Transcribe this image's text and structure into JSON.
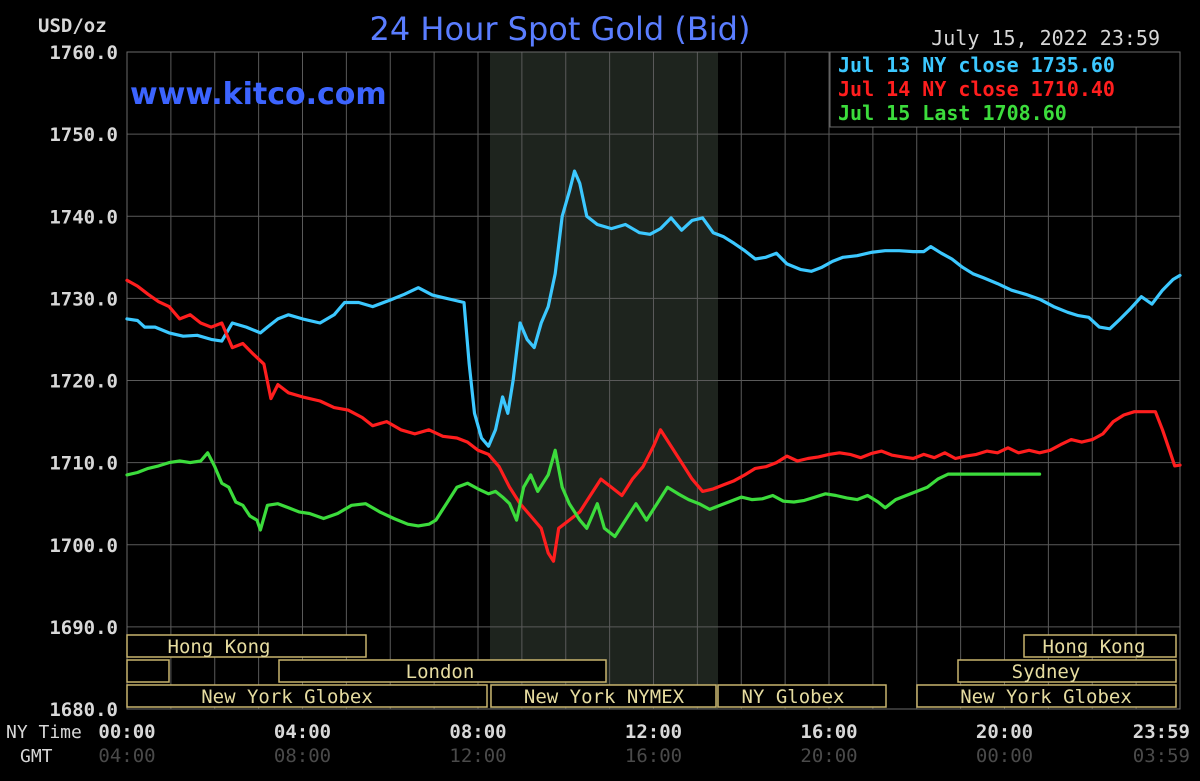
{
  "colors": {
    "background": "#000000",
    "grid": "#5a5a5a",
    "axis_text": "#d8d8d8",
    "title": "#5a7dff",
    "brand": "#3c64ff",
    "nymex_shade": "#1e241e",
    "session_border": "#c8b46e",
    "session_text": "#e6dca0"
  },
  "header": {
    "units": "USD/oz",
    "title": "24 Hour Spot Gold (Bid)",
    "timestamp": "July 15, 2022 23:59",
    "brand": "www.kitco.com"
  },
  "axis_labels": {
    "ny_time": "NY Time",
    "gmt": "GMT"
  },
  "sessions": {
    "hong_kong_1": "Hong Kong",
    "london": "London",
    "ny_globex_1": "New York Globex",
    "ny_nymex": "New York NYMEX",
    "ny_globex_2": "NY Globex",
    "hong_kong_2": "Hong Kong",
    "sydney": "Sydney",
    "ny_globex_3": "New York Globex"
  },
  "chart_data": {
    "type": "line",
    "title": "24 Hour Spot Gold (Bid)",
    "ylabel": "USD/oz",
    "ylim": [
      1680,
      1760
    ],
    "yticks": [
      "1760.0",
      "1750.0",
      "1740.0",
      "1730.0",
      "1720.0",
      "1710.0",
      "1700.0",
      "1690.0",
      "1680.0"
    ],
    "xlim_hours": [
      0,
      24
    ],
    "xticks_ny": [
      "00:00",
      "04:00",
      "08:00",
      "12:00",
      "16:00",
      "20:00",
      "23:59"
    ],
    "xticks_gmt": [
      "04:00",
      "08:00",
      "12:00",
      "16:00",
      "20:00",
      "00:00",
      "03:59"
    ],
    "grid": true,
    "legend_position": "top-right",
    "series": [
      {
        "name": "Jul 13 NY close 1735.60",
        "color": "#3cc8ff",
        "points": [
          [
            0,
            1727.5
          ],
          [
            0.3,
            1727.3
          ],
          [
            0.5,
            1726.5
          ],
          [
            0.8,
            1726.5
          ],
          [
            1.2,
            1725.8
          ],
          [
            1.6,
            1725.4
          ],
          [
            2.0,
            1725.5
          ],
          [
            2.4,
            1725.0
          ],
          [
            2.7,
            1724.8
          ],
          [
            3.0,
            1727
          ],
          [
            3.4,
            1726.5
          ],
          [
            3.8,
            1725.8
          ],
          [
            4.0,
            1726.5
          ],
          [
            4.3,
            1727.5
          ],
          [
            4.6,
            1728
          ],
          [
            5.0,
            1727.5
          ],
          [
            5.5,
            1727.0
          ],
          [
            5.9,
            1728
          ],
          [
            6.2,
            1729.5
          ],
          [
            6.6,
            1729.5
          ],
          [
            7.0,
            1729.0
          ],
          [
            7.5,
            1729.8
          ],
          [
            7.9,
            1730.5
          ],
          [
            8.3,
            1731.3
          ],
          [
            8.7,
            1730.4
          ],
          [
            9.0,
            1730.1
          ],
          [
            9.3,
            1729.8
          ],
          [
            9.6,
            1729.5
          ],
          [
            9.75,
            1722
          ],
          [
            9.9,
            1716
          ],
          [
            10.1,
            1713
          ],
          [
            10.3,
            1712
          ],
          [
            10.5,
            1714
          ],
          [
            10.7,
            1718
          ],
          [
            10.85,
            1716
          ],
          [
            11.0,
            1720
          ],
          [
            11.2,
            1727
          ],
          [
            11.4,
            1725
          ],
          [
            11.6,
            1724
          ],
          [
            11.8,
            1727
          ],
          [
            12.0,
            1729
          ],
          [
            12.2,
            1733
          ],
          [
            12.4,
            1740
          ],
          [
            12.6,
            1743
          ],
          [
            12.75,
            1745.5
          ],
          [
            12.9,
            1744
          ],
          [
            13.1,
            1740
          ],
          [
            13.4,
            1739
          ],
          [
            13.8,
            1738.5
          ],
          [
            14.2,
            1739.0
          ],
          [
            14.6,
            1738
          ],
          [
            14.9,
            1737.8
          ],
          [
            15.2,
            1738.5
          ],
          [
            15.5,
            1739.8
          ],
          [
            15.8,
            1738.3
          ],
          [
            16.1,
            1739.5
          ],
          [
            16.4,
            1739.8
          ],
          [
            16.7,
            1738
          ],
          [
            17.0,
            1737.5
          ],
          [
            17.3,
            1736.7
          ],
          [
            17.6,
            1735.8
          ],
          [
            17.9,
            1734.8
          ],
          [
            18.2,
            1735
          ],
          [
            18.5,
            1735.5
          ],
          [
            18.8,
            1734.2
          ],
          [
            19.2,
            1733.5
          ],
          [
            19.5,
            1733.3
          ],
          [
            19.8,
            1733.8
          ],
          [
            20.1,
            1734.5
          ],
          [
            20.4,
            1735
          ],
          [
            20.8,
            1735.2
          ],
          [
            21.2,
            1735.6
          ],
          [
            21.6,
            1735.8
          ],
          [
            22.0,
            1735.8
          ],
          [
            22.4,
            1735.7
          ],
          [
            22.7,
            1735.7
          ],
          [
            22.9,
            1736.3
          ],
          [
            23.2,
            1735.5
          ],
          [
            23.5,
            1734.8
          ],
          [
            23.8,
            1733.8
          ],
          [
            24.1,
            1733
          ],
          [
            24.4,
            1732.5
          ],
          [
            24.8,
            1731.8
          ],
          [
            25.2,
            1731.0
          ],
          [
            25.6,
            1730.5
          ],
          [
            26.0,
            1729.9
          ],
          [
            26.4,
            1729.0
          ],
          [
            26.8,
            1728.3
          ],
          [
            27.1,
            1727.9
          ],
          [
            27.4,
            1727.7
          ],
          [
            27.7,
            1726.5
          ],
          [
            28.0,
            1726.3
          ],
          [
            28.3,
            1727.5
          ],
          [
            28.6,
            1728.8
          ],
          [
            28.9,
            1730.2
          ],
          [
            29.2,
            1729.3
          ],
          [
            29.5,
            1731
          ],
          [
            29.8,
            1732.3
          ],
          [
            30.0,
            1732.8
          ]
        ]
      },
      {
        "name": "Jul 14 NY close 1710.40",
        "color": "#ff1e1e",
        "points": [
          [
            0,
            1732.2
          ],
          [
            0.3,
            1731.5
          ],
          [
            0.6,
            1730.5
          ],
          [
            0.9,
            1729.6
          ],
          [
            1.2,
            1729.0
          ],
          [
            1.5,
            1727.5
          ],
          [
            1.8,
            1728
          ],
          [
            2.1,
            1727
          ],
          [
            2.4,
            1726.5
          ],
          [
            2.7,
            1727
          ],
          [
            3.0,
            1724
          ],
          [
            3.3,
            1724.5
          ],
          [
            3.6,
            1723.2
          ],
          [
            3.9,
            1722.0
          ],
          [
            4.1,
            1717.8
          ],
          [
            4.3,
            1719.5
          ],
          [
            4.6,
            1718.5
          ],
          [
            5.0,
            1718.0
          ],
          [
            5.5,
            1717.5
          ],
          [
            5.9,
            1716.7
          ],
          [
            6.3,
            1716.4
          ],
          [
            6.7,
            1715.5
          ],
          [
            7.0,
            1714.5
          ],
          [
            7.4,
            1715.0
          ],
          [
            7.8,
            1714.0
          ],
          [
            8.2,
            1713.5
          ],
          [
            8.6,
            1714.0
          ],
          [
            9.0,
            1713.2
          ],
          [
            9.4,
            1713.0
          ],
          [
            9.7,
            1712.5
          ],
          [
            10.0,
            1711.5
          ],
          [
            10.3,
            1711.0
          ],
          [
            10.6,
            1709.5
          ],
          [
            10.9,
            1707
          ],
          [
            11.2,
            1705
          ],
          [
            11.5,
            1703.5
          ],
          [
            11.8,
            1702
          ],
          [
            12.0,
            1699
          ],
          [
            12.15,
            1698
          ],
          [
            12.3,
            1702
          ],
          [
            12.6,
            1703
          ],
          [
            12.9,
            1704
          ],
          [
            13.2,
            1706
          ],
          [
            13.5,
            1708
          ],
          [
            13.8,
            1707
          ],
          [
            14.1,
            1706
          ],
          [
            14.4,
            1708
          ],
          [
            14.7,
            1709.5
          ],
          [
            15.0,
            1712
          ],
          [
            15.2,
            1714.0
          ],
          [
            15.5,
            1712
          ],
          [
            15.8,
            1710
          ],
          [
            16.1,
            1708
          ],
          [
            16.4,
            1706.5
          ],
          [
            16.7,
            1706.8
          ],
          [
            17.0,
            1707.3
          ],
          [
            17.3,
            1707.8
          ],
          [
            17.6,
            1708.5
          ],
          [
            17.9,
            1709.3
          ],
          [
            18.2,
            1709.5
          ],
          [
            18.5,
            1710.0
          ],
          [
            18.8,
            1710.8
          ],
          [
            19.1,
            1710.2
          ],
          [
            19.4,
            1710.5
          ],
          [
            19.7,
            1710.7
          ],
          [
            20.0,
            1711.0
          ],
          [
            20.3,
            1711.2
          ],
          [
            20.6,
            1711.0
          ],
          [
            20.9,
            1710.6
          ],
          [
            21.2,
            1711.1
          ],
          [
            21.5,
            1711.4
          ],
          [
            21.8,
            1710.9
          ],
          [
            22.1,
            1710.7
          ],
          [
            22.4,
            1710.5
          ],
          [
            22.7,
            1711.0
          ],
          [
            23.0,
            1710.6
          ],
          [
            23.3,
            1711.2
          ],
          [
            23.6,
            1710.5
          ],
          [
            23.9,
            1710.8
          ],
          [
            24.2,
            1711.0
          ],
          [
            24.5,
            1711.4
          ],
          [
            24.8,
            1711.2
          ],
          [
            25.1,
            1711.8
          ],
          [
            25.4,
            1711.2
          ],
          [
            25.7,
            1711.5
          ],
          [
            26.0,
            1711.2
          ],
          [
            26.3,
            1711.5
          ],
          [
            26.6,
            1712.2
          ],
          [
            26.9,
            1712.8
          ],
          [
            27.2,
            1712.5
          ],
          [
            27.5,
            1712.8
          ],
          [
            27.8,
            1713.5
          ],
          [
            28.1,
            1715.0
          ],
          [
            28.4,
            1715.8
          ],
          [
            28.7,
            1716.2
          ],
          [
            29.0,
            1716.2
          ],
          [
            29.3,
            1716.2
          ],
          [
            29.5,
            1714.0
          ],
          [
            29.7,
            1711.5
          ],
          [
            29.85,
            1709.6
          ],
          [
            30.0,
            1709.7
          ]
        ]
      },
      {
        "name": "Jul 15 Last 1708.60",
        "color": "#3cdc3c",
        "points": [
          [
            0,
            1708.5
          ],
          [
            0.3,
            1708.8
          ],
          [
            0.6,
            1709.3
          ],
          [
            0.9,
            1709.6
          ],
          [
            1.2,
            1710.0
          ],
          [
            1.5,
            1710.2
          ],
          [
            1.8,
            1710.0
          ],
          [
            2.1,
            1710.2
          ],
          [
            2.3,
            1711.2
          ],
          [
            2.5,
            1709.5
          ],
          [
            2.7,
            1707.5
          ],
          [
            2.9,
            1707
          ],
          [
            3.1,
            1705.2
          ],
          [
            3.3,
            1704.8
          ],
          [
            3.5,
            1703.5
          ],
          [
            3.7,
            1703.0
          ],
          [
            3.8,
            1701.8
          ],
          [
            4.0,
            1704.8
          ],
          [
            4.3,
            1705.0
          ],
          [
            4.6,
            1704.5
          ],
          [
            4.9,
            1704.0
          ],
          [
            5.2,
            1703.8
          ],
          [
            5.6,
            1703.2
          ],
          [
            6.0,
            1703.8
          ],
          [
            6.4,
            1704.8
          ],
          [
            6.8,
            1705.0
          ],
          [
            7.2,
            1704.0
          ],
          [
            7.6,
            1703.2
          ],
          [
            8.0,
            1702.5
          ],
          [
            8.3,
            1702.3
          ],
          [
            8.6,
            1702.5
          ],
          [
            8.8,
            1703
          ],
          [
            9.1,
            1705.0
          ],
          [
            9.4,
            1707.0
          ],
          [
            9.7,
            1707.5
          ],
          [
            10.0,
            1706.8
          ],
          [
            10.3,
            1706.2
          ],
          [
            10.5,
            1706.5
          ],
          [
            10.7,
            1705.8
          ],
          [
            10.9,
            1705
          ],
          [
            11.1,
            1703
          ],
          [
            11.3,
            1707
          ],
          [
            11.5,
            1708.5
          ],
          [
            11.7,
            1706.5
          ],
          [
            12.0,
            1708.5
          ],
          [
            12.2,
            1711.5
          ],
          [
            12.4,
            1707
          ],
          [
            12.6,
            1705
          ],
          [
            12.9,
            1703
          ],
          [
            13.1,
            1702
          ],
          [
            13.4,
            1705
          ],
          [
            13.6,
            1702
          ],
          [
            13.9,
            1701
          ],
          [
            14.2,
            1703
          ],
          [
            14.5,
            1705
          ],
          [
            14.8,
            1703
          ],
          [
            15.1,
            1705
          ],
          [
            15.4,
            1707
          ],
          [
            15.7,
            1706.2
          ],
          [
            16.0,
            1705.5
          ],
          [
            16.3,
            1705.0
          ],
          [
            16.6,
            1704.3
          ],
          [
            16.9,
            1704.8
          ],
          [
            17.2,
            1705.3
          ],
          [
            17.5,
            1705.8
          ],
          [
            17.8,
            1705.5
          ],
          [
            18.1,
            1705.6
          ],
          [
            18.4,
            1706.0
          ],
          [
            18.7,
            1705.3
          ],
          [
            19.0,
            1705.2
          ],
          [
            19.3,
            1705.4
          ],
          [
            19.6,
            1705.8
          ],
          [
            19.9,
            1706.2
          ],
          [
            20.2,
            1706.0
          ],
          [
            20.5,
            1705.7
          ],
          [
            20.8,
            1705.5
          ],
          [
            21.1,
            1706.0
          ],
          [
            21.4,
            1705.2
          ],
          [
            21.6,
            1704.5
          ],
          [
            21.9,
            1705.5
          ],
          [
            22.2,
            1706.0
          ],
          [
            22.5,
            1706.5
          ],
          [
            22.8,
            1707.0
          ],
          [
            23.1,
            1708.0
          ],
          [
            23.4,
            1708.6
          ],
          [
            23.7,
            1708.6
          ],
          [
            24.0,
            1708.6
          ],
          [
            24.3,
            1708.6
          ],
          [
            24.6,
            1708.6
          ],
          [
            24.9,
            1708.6
          ],
          [
            25.2,
            1708.6
          ],
          [
            25.5,
            1708.6
          ],
          [
            25.8,
            1708.6
          ],
          [
            26.0,
            1708.6
          ]
        ]
      }
    ]
  }
}
